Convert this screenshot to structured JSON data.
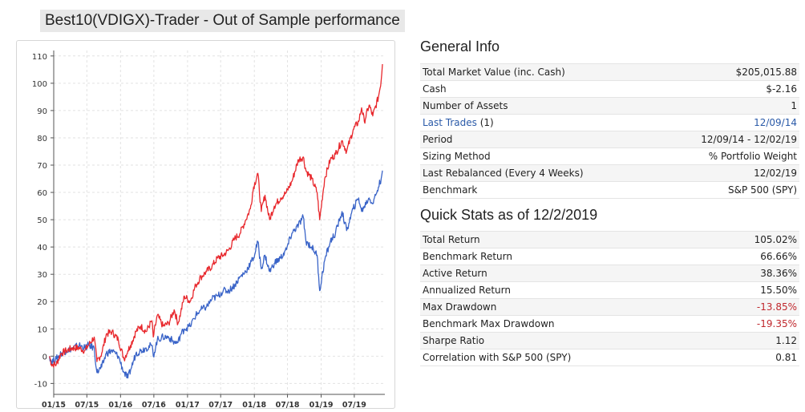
{
  "title": "Best10(VDIGX)-Trader - Out of Sample performance",
  "general_info": {
    "heading": "General Info",
    "rows": [
      {
        "label": "Total Market Value (inc. Cash)",
        "value": "$205,015.88"
      },
      {
        "label": "Cash",
        "value": "$-2.16"
      },
      {
        "label": "Number of Assets",
        "value": "1"
      },
      {
        "label": "Last Trades",
        "label_suffix": " (1)",
        "value": "12/09/14",
        "link": true
      },
      {
        "label": "Period",
        "value": "12/09/14 - 12/02/19"
      },
      {
        "label": "Sizing Method",
        "value": "% Portfolio Weight"
      },
      {
        "label": "Last Rebalanced (Every 4 Weeks)",
        "value": "12/02/19"
      },
      {
        "label": "Benchmark",
        "value": "S&P 500 (SPY)"
      }
    ]
  },
  "quick_stats": {
    "heading": "Quick Stats as of 12/2/2019",
    "rows": [
      {
        "label": "Total Return",
        "value": "105.02%"
      },
      {
        "label": "Benchmark Return",
        "value": "66.66%"
      },
      {
        "label": "Active Return",
        "value": "38.36%"
      },
      {
        "label": "Annualized Return",
        "value": "15.50%"
      },
      {
        "label": "Max Drawdown",
        "value": "-13.85%",
        "negative": true
      },
      {
        "label": "Benchmark Max Drawdown",
        "value": "-19.35%",
        "negative": true
      },
      {
        "label": "Sharpe Ratio",
        "value": "1.12"
      },
      {
        "label": "Correlation with S&P 500 (SPY)",
        "value": "0.81"
      }
    ]
  },
  "colors": {
    "strategy": "#e8282d",
    "benchmark": "#3a64c8",
    "grid": "#e2e2e2",
    "axis": "#555555"
  },
  "chart_data": {
    "type": "line",
    "grid": true,
    "legend": "none",
    "ylim": [
      -14,
      112
    ],
    "yticks": [
      -10,
      0,
      10,
      20,
      30,
      40,
      50,
      60,
      70,
      80,
      90,
      100,
      110
    ],
    "xlim": [
      "2015-01-01",
      "2019-12-15"
    ],
    "xticks": [
      {
        "date": "2015-01-01",
        "label": "01/15"
      },
      {
        "date": "2015-07-01",
        "label": "07/15"
      },
      {
        "date": "2016-01-01",
        "label": "01/16"
      },
      {
        "date": "2016-07-01",
        "label": "07/16"
      },
      {
        "date": "2017-01-01",
        "label": "01/17"
      },
      {
        "date": "2017-07-01",
        "label": "07/17"
      },
      {
        "date": "2018-01-01",
        "label": "01/18"
      },
      {
        "date": "2018-07-01",
        "label": "07/18"
      },
      {
        "date": "2019-01-01",
        "label": "01/19"
      },
      {
        "date": "2019-07-01",
        "label": "07/19"
      }
    ],
    "series": [
      {
        "points": [
          [
            "2014-12-09",
            0
          ],
          [
            "2014-12-20",
            -3
          ],
          [
            "2015-01-15",
            -3
          ],
          [
            "2015-02-10",
            1
          ],
          [
            "2015-03-10",
            2
          ],
          [
            "2015-04-15",
            3
          ],
          [
            "2015-05-20",
            3
          ],
          [
            "2015-06-20",
            2
          ],
          [
            "2015-07-10",
            4
          ],
          [
            "2015-08-10",
            7
          ],
          [
            "2015-08-25",
            -2
          ],
          [
            "2015-09-20",
            1
          ],
          [
            "2015-10-15",
            8
          ],
          [
            "2015-11-15",
            9
          ],
          [
            "2015-12-20",
            6
          ],
          [
            "2016-01-20",
            -1
          ],
          [
            "2016-02-10",
            2
          ],
          [
            "2016-02-25",
            4
          ],
          [
            "2016-03-25",
            9
          ],
          [
            "2016-04-20",
            11
          ],
          [
            "2016-05-20",
            9
          ],
          [
            "2016-06-20",
            13
          ],
          [
            "2016-06-28",
            7
          ],
          [
            "2016-07-20",
            15
          ],
          [
            "2016-08-20",
            11
          ],
          [
            "2016-09-20",
            12
          ],
          [
            "2016-10-20",
            17
          ],
          [
            "2016-11-10",
            12
          ],
          [
            "2016-11-25",
            16
          ],
          [
            "2016-12-15",
            22
          ],
          [
            "2017-01-15",
            20
          ],
          [
            "2017-02-15",
            26
          ],
          [
            "2017-03-15",
            29
          ],
          [
            "2017-04-15",
            31
          ],
          [
            "2017-05-15",
            33
          ],
          [
            "2017-06-15",
            36
          ],
          [
            "2017-07-15",
            37
          ],
          [
            "2017-08-15",
            39
          ],
          [
            "2017-09-15",
            43
          ],
          [
            "2017-10-15",
            45
          ],
          [
            "2017-11-15",
            50
          ],
          [
            "2017-12-10",
            54
          ],
          [
            "2017-12-28",
            62
          ],
          [
            "2018-01-20",
            67
          ],
          [
            "2018-02-08",
            53
          ],
          [
            "2018-02-28",
            59
          ],
          [
            "2018-03-25",
            50
          ],
          [
            "2018-04-20",
            55
          ],
          [
            "2018-05-25",
            58
          ],
          [
            "2018-06-25",
            60
          ],
          [
            "2018-07-25",
            64
          ],
          [
            "2018-08-30",
            72
          ],
          [
            "2018-09-25",
            73
          ],
          [
            "2018-10-10",
            68
          ],
          [
            "2018-11-10",
            65
          ],
          [
            "2018-12-10",
            60
          ],
          [
            "2018-12-24",
            50
          ],
          [
            "2019-01-20",
            65
          ],
          [
            "2019-02-20",
            72
          ],
          [
            "2019-03-20",
            74
          ],
          [
            "2019-04-25",
            79
          ],
          [
            "2019-05-20",
            75
          ],
          [
            "2019-06-25",
            83
          ],
          [
            "2019-07-25",
            86
          ],
          [
            "2019-08-10",
            91
          ],
          [
            "2019-08-25",
            86
          ],
          [
            "2019-09-20",
            92
          ],
          [
            "2019-10-10",
            88
          ],
          [
            "2019-11-10",
            95
          ],
          [
            "2019-11-25",
            101
          ],
          [
            "2019-12-02",
            107
          ]
        ]
      },
      {
        "points": [
          [
            "2014-12-09",
            0
          ],
          [
            "2014-12-20",
            -2
          ],
          [
            "2015-01-15",
            -1
          ],
          [
            "2015-02-10",
            1
          ],
          [
            "2015-03-10",
            2
          ],
          [
            "2015-04-15",
            3
          ],
          [
            "2015-05-20",
            4
          ],
          [
            "2015-06-20",
            3
          ],
          [
            "2015-07-10",
            4
          ],
          [
            "2015-08-10",
            3
          ],
          [
            "2015-08-25",
            -6
          ],
          [
            "2015-09-20",
            -4
          ],
          [
            "2015-10-15",
            1
          ],
          [
            "2015-11-15",
            2
          ],
          [
            "2015-12-20",
            0
          ],
          [
            "2016-01-20",
            -6
          ],
          [
            "2016-02-10",
            -8
          ],
          [
            "2016-02-25",
            -5
          ],
          [
            "2016-03-25",
            1
          ],
          [
            "2016-04-20",
            2
          ],
          [
            "2016-05-20",
            3
          ],
          [
            "2016-06-20",
            4
          ],
          [
            "2016-06-28",
            0
          ],
          [
            "2016-07-20",
            6
          ],
          [
            "2016-08-20",
            7
          ],
          [
            "2016-09-20",
            7
          ],
          [
            "2016-10-20",
            5
          ],
          [
            "2016-11-10",
            5
          ],
          [
            "2016-11-25",
            8
          ],
          [
            "2016-12-15",
            10
          ],
          [
            "2017-01-15",
            11
          ],
          [
            "2017-02-15",
            15
          ],
          [
            "2017-03-15",
            17
          ],
          [
            "2017-04-15",
            18
          ],
          [
            "2017-05-15",
            21
          ],
          [
            "2017-06-15",
            22
          ],
          [
            "2017-07-15",
            24
          ],
          [
            "2017-08-15",
            24
          ],
          [
            "2017-09-15",
            26
          ],
          [
            "2017-10-15",
            29
          ],
          [
            "2017-11-15",
            31
          ],
          [
            "2017-12-10",
            34
          ],
          [
            "2017-12-28",
            36
          ],
          [
            "2018-01-20",
            42
          ],
          [
            "2018-02-08",
            32
          ],
          [
            "2018-02-28",
            37
          ],
          [
            "2018-03-25",
            31
          ],
          [
            "2018-04-20",
            34
          ],
          [
            "2018-05-25",
            36
          ],
          [
            "2018-06-25",
            39
          ],
          [
            "2018-07-25",
            45
          ],
          [
            "2018-08-30",
            48
          ],
          [
            "2018-09-25",
            51
          ],
          [
            "2018-10-10",
            42
          ],
          [
            "2018-11-10",
            40
          ],
          [
            "2018-12-10",
            37
          ],
          [
            "2018-12-24",
            24
          ],
          [
            "2019-01-20",
            35
          ],
          [
            "2019-02-20",
            42
          ],
          [
            "2019-03-20",
            45
          ],
          [
            "2019-04-25",
            53
          ],
          [
            "2019-05-20",
            46
          ],
          [
            "2019-06-25",
            54
          ],
          [
            "2019-07-25",
            58
          ],
          [
            "2019-08-10",
            53
          ],
          [
            "2019-08-25",
            55
          ],
          [
            "2019-09-20",
            58
          ],
          [
            "2019-10-10",
            56
          ],
          [
            "2019-11-10",
            62
          ],
          [
            "2019-11-25",
            65
          ],
          [
            "2019-12-02",
            68
          ]
        ]
      }
    ]
  }
}
